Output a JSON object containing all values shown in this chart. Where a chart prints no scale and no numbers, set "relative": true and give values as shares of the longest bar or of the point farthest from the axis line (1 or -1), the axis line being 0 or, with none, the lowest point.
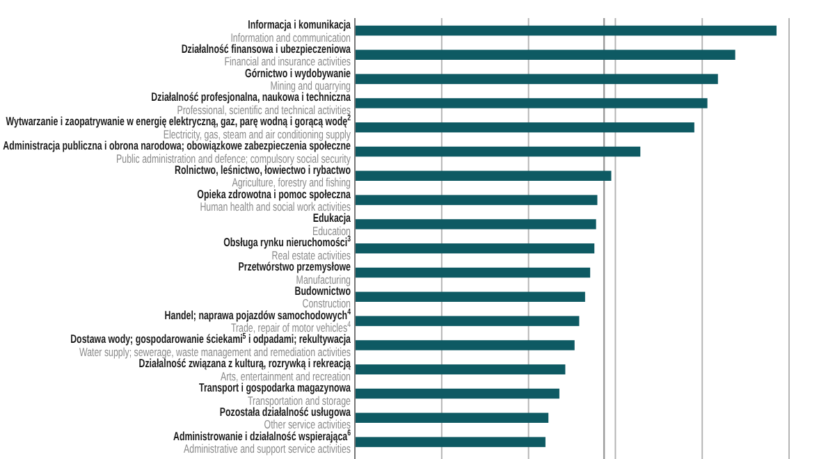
{
  "chart_data": {
    "type": "bar",
    "orientation": "horizontal",
    "relative": true,
    "grid": "x",
    "color": "#0e5a63",
    "categories": [
      "Informacja i komunikacja\nInformation and communication",
      "Działalność finansowa i ubezpieczeniowa\nFinancial and insurance activities",
      "Górnictwo i wydobywanie\nMining and quarrying",
      "Działalność profesjonalna, naukowa i techniczna\nProfessional, scientific and technical activities",
      "Wytwarzanie i zaopatrywanie w energię elektryczną, gaz, parę wodną i gorącą wodę$^{2}$\nElectricity, gas, steam and air conditioning supply",
      "Administracja publiczna i obrona narodowa; obowiązkowe zabezpieczenia społeczne\nPublic administration and defence; compulsory social security",
      "Rolnictwo, leśnictwo, łowiectwo i rybactwo\nAgriculture, forestry and fishing",
      "Opieka zdrowotna i pomoc społeczna\nHuman health and social work activities",
      "Edukacja\nEducation",
      "Obsługa rynku nieruchomości$^{3}$\nReal estate activities",
      "Przetwórstwo przemysłowe\nManufacturing",
      "Budownictwo\nConstruction",
      "Handel; naprawa pojazdów samochodowych$^{4}$\nTrade, repair of motor vehicles$^{4}$",
      "Dostawa wody; gospodarowanie ściekami$^{5}$ i odpadami; rekultywacja\nWater supply; sewerage, waste management and remediation activities",
      "Działalność związana z kulturą, rozrywką i rekreacją\nArts, entertainment and recreation",
      "Transport i gospodarka magazynowa\nTransportation and storage",
      "Pozostała działalność usługowa\nOther service activities",
      "Administrowanie i działalność wspierająca$^{6}$\nAdministrative and support service activities"
    ],
    "values": [
      1,
      0.902,
      0.861,
      0.836,
      0.805,
      0.677,
      0.608,
      0.575,
      0.572,
      0.568,
      0.558,
      0.546,
      0.532,
      0.521,
      0.499,
      0.485,
      0.459,
      0.452
    ],
    "ref_lines": [
      {
        "axis": "x",
        "value": 0.591,
        "color": "#9a9a9a"
      }
    ]
  }
}
